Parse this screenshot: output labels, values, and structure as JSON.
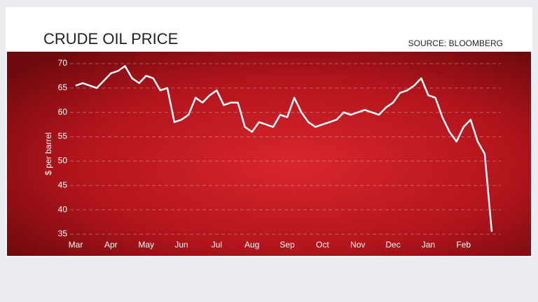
{
  "chart_data": {
    "type": "line",
    "title": "CRUDE OIL PRICE",
    "source": "SOURCE: BLOOMBERG",
    "y_label": "$ per barrel",
    "categories": [
      "Mar",
      null,
      null,
      null,
      null,
      "Apr",
      null,
      null,
      null,
      null,
      "May",
      null,
      null,
      null,
      null,
      "Jun",
      null,
      null,
      null,
      null,
      "Jul",
      null,
      null,
      null,
      null,
      "Aug",
      null,
      null,
      null,
      null,
      "Sep",
      null,
      null,
      null,
      null,
      "Oct",
      null,
      null,
      null,
      null,
      "Nov",
      null,
      null,
      null,
      null,
      "Dec",
      null,
      null,
      null,
      null,
      "Jan",
      null,
      null,
      null,
      null,
      "Feb",
      null,
      null,
      null,
      null
    ],
    "values": [
      65.5,
      66,
      65.5,
      65,
      66.5,
      68,
      68.5,
      69.5,
      67,
      66,
      67.5,
      67,
      64.5,
      65,
      58,
      58.5,
      59.5,
      63,
      62,
      63.5,
      64.5,
      61.5,
      62,
      62,
      57,
      56,
      58,
      57.5,
      57,
      59.5,
      59,
      63,
      60,
      58,
      57,
      57.5,
      58,
      58.5,
      60,
      59.5,
      60,
      60.5,
      60,
      59.5,
      61,
      62,
      64,
      64.5,
      65.5,
      67,
      63.5,
      63,
      59,
      56,
      54,
      57,
      58.5,
      54,
      51.5,
      35.5
    ],
    "color": "#ffffff",
    "ylim": [
      35,
      70
    ],
    "yticks": [
      35,
      40,
      45,
      50,
      55,
      60,
      65,
      70
    ],
    "grid": true
  }
}
